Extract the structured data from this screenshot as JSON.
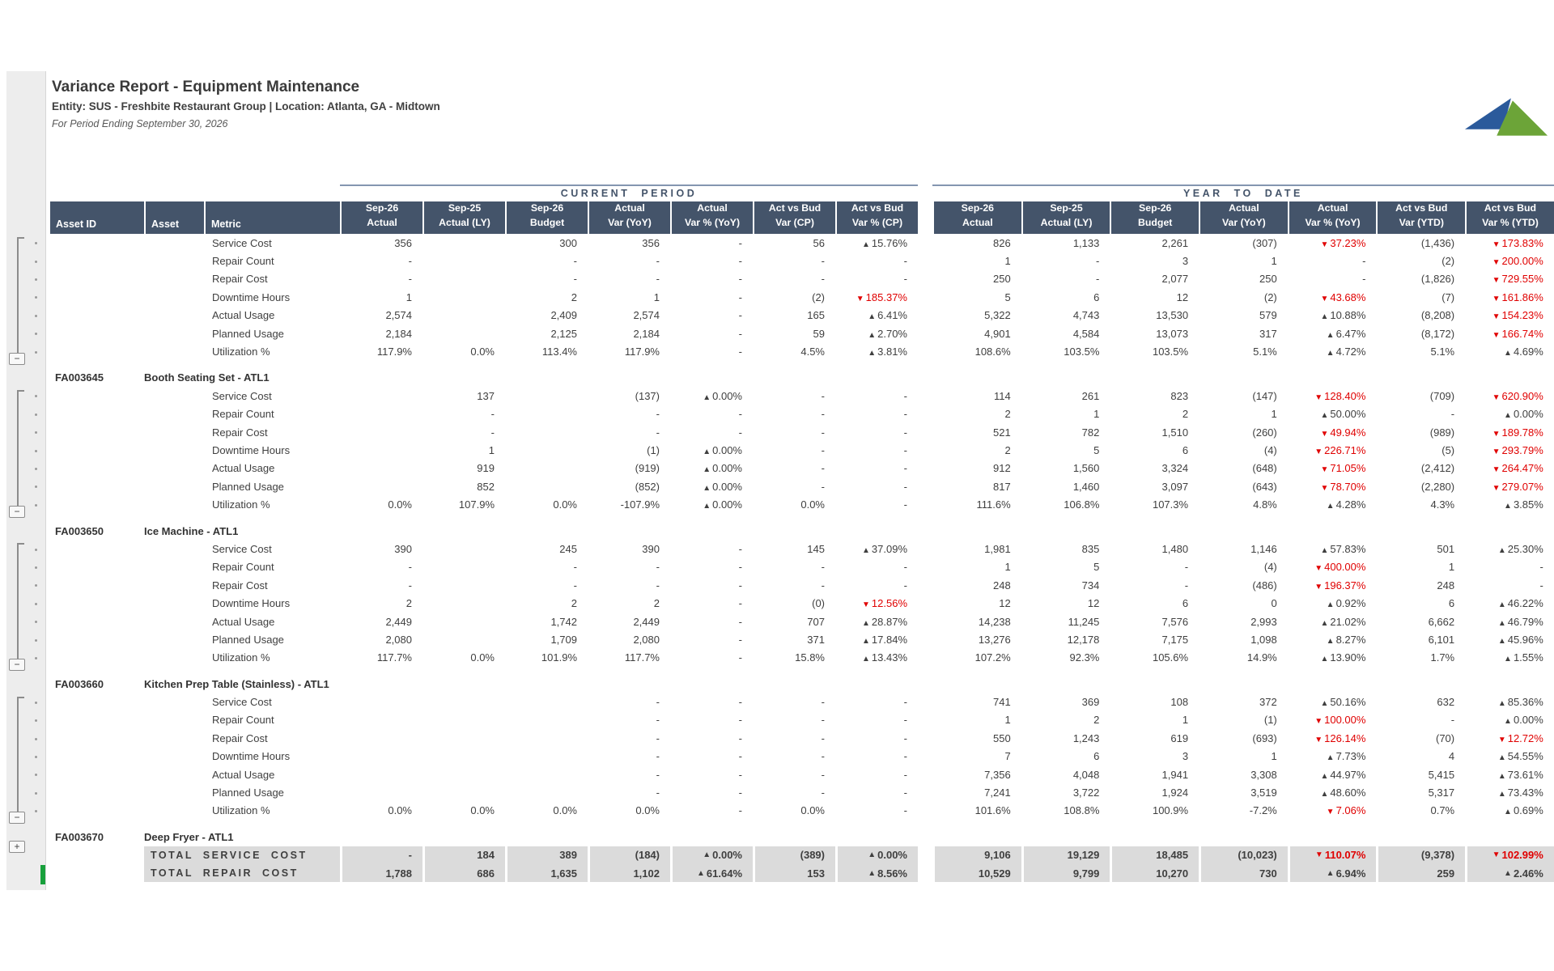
{
  "report": {
    "title": "Variance Report - Equipment Maintenance",
    "entity_line": "Entity: SUS - Freshbite Restaurant Group  |  Location: Atlanta, GA - Midtown",
    "period_line": "For Period Ending September 30, 2026"
  },
  "sections": {
    "current_period": "CURRENT PERIOD",
    "year_to_date": "YEAR TO DATE"
  },
  "columns": {
    "labels": [
      "Asset ID",
      "Asset",
      "Metric"
    ],
    "value_headers": [
      [
        "Sep-26",
        "Actual"
      ],
      [
        "Sep-25",
        "Actual (LY)"
      ],
      [
        "Sep-26",
        "Budget"
      ],
      [
        "Actual",
        "Var (YoY)"
      ],
      [
        "Actual",
        "Var % (YoY)"
      ],
      [
        "Act vs Bud",
        "Var (CP)"
      ],
      [
        "Act vs Bud",
        "Var % (CP)"
      ],
      [
        "Sep-26",
        "Actual"
      ],
      [
        "Sep-25",
        "Actual (LY)"
      ],
      [
        "Sep-26",
        "Budget"
      ],
      [
        "Actual",
        "Var (YoY)"
      ],
      [
        "Actual",
        "Var % (YoY)"
      ],
      [
        "Act vs Bud",
        "Var (YTD)"
      ],
      [
        "Act vs Bud",
        "Var % (YTD)"
      ]
    ]
  },
  "groups": [
    {
      "asset_id": "",
      "asset_name": "",
      "rows": [
        {
          "metric": "Service Cost",
          "cells": [
            "356",
            "",
            "300",
            "356",
            "-",
            "56",
            "▲15.76%",
            "826",
            "1,133",
            "2,261",
            "(307)",
            "▼37.23%",
            "(1,436)",
            "▼173.83%"
          ]
        },
        {
          "metric": "Repair Count",
          "cells": [
            "-",
            "",
            "-",
            "-",
            "-",
            "-",
            "-",
            "1",
            "-",
            "3",
            "1",
            "-",
            "(2)",
            "▼200.00%"
          ]
        },
        {
          "metric": "Repair Cost",
          "cells": [
            "-",
            "",
            "-",
            "-",
            "-",
            "-",
            "-",
            "250",
            "-",
            "2,077",
            "250",
            "-",
            "(1,826)",
            "▼729.55%"
          ]
        },
        {
          "metric": "Downtime Hours",
          "cells": [
            "1",
            "",
            "2",
            "1",
            "-",
            "(2)",
            "▼185.37%",
            "5",
            "6",
            "12",
            "(2)",
            "▼43.68%",
            "(7)",
            "▼161.86%"
          ]
        },
        {
          "metric": "Actual Usage",
          "cells": [
            "2,574",
            "",
            "2,409",
            "2,574",
            "-",
            "165",
            "▲6.41%",
            "5,322",
            "4,743",
            "13,530",
            "579",
            "▲10.88%",
            "(8,208)",
            "▼154.23%"
          ]
        },
        {
          "metric": "Planned Usage",
          "cells": [
            "2,184",
            "",
            "2,125",
            "2,184",
            "-",
            "59",
            "▲2.70%",
            "4,901",
            "4,584",
            "13,073",
            "317",
            "▲6.47%",
            "(8,172)",
            "▼166.74%"
          ]
        },
        {
          "metric": "Utilization %",
          "cells": [
            "117.9%",
            "0.0%",
            "113.4%",
            "117.9%",
            "-",
            "4.5%",
            "▲3.81%",
            "108.6%",
            "103.5%",
            "103.5%",
            "5.1%",
            "▲4.72%",
            "5.1%",
            "▲4.69%"
          ]
        }
      ]
    },
    {
      "asset_id": "FA003645",
      "asset_name": "Booth Seating Set - ATL1",
      "rows": [
        {
          "metric": "Service Cost",
          "cells": [
            "",
            "137",
            "",
            "(137)",
            "▲0.00%",
            "-",
            "-",
            "114",
            "261",
            "823",
            "(147)",
            "▼128.40%",
            "(709)",
            "▼620.90%"
          ]
        },
        {
          "metric": "Repair Count",
          "cells": [
            "",
            "-",
            "",
            "-",
            "-",
            "-",
            "-",
            "2",
            "1",
            "2",
            "1",
            "▲50.00%",
            "-",
            "▲0.00%"
          ]
        },
        {
          "metric": "Repair Cost",
          "cells": [
            "",
            "-",
            "",
            "-",
            "-",
            "-",
            "-",
            "521",
            "782",
            "1,510",
            "(260)",
            "▼49.94%",
            "(989)",
            "▼189.78%"
          ]
        },
        {
          "metric": "Downtime Hours",
          "cells": [
            "",
            "1",
            "",
            "(1)",
            "▲0.00%",
            "-",
            "-",
            "2",
            "5",
            "6",
            "(4)",
            "▼226.71%",
            "(5)",
            "▼293.79%"
          ]
        },
        {
          "metric": "Actual Usage",
          "cells": [
            "",
            "919",
            "",
            "(919)",
            "▲0.00%",
            "-",
            "-",
            "912",
            "1,560",
            "3,324",
            "(648)",
            "▼71.05%",
            "(2,412)",
            "▼264.47%"
          ]
        },
        {
          "metric": "Planned Usage",
          "cells": [
            "",
            "852",
            "",
            "(852)",
            "▲0.00%",
            "-",
            "-",
            "817",
            "1,460",
            "3,097",
            "(643)",
            "▼78.70%",
            "(2,280)",
            "▼279.07%"
          ]
        },
        {
          "metric": "Utilization %",
          "cells": [
            "0.0%",
            "107.9%",
            "0.0%",
            "-107.9%",
            "▲0.00%",
            "0.0%",
            "-",
            "111.6%",
            "106.8%",
            "107.3%",
            "4.8%",
            "▲4.28%",
            "4.3%",
            "▲3.85%"
          ]
        }
      ]
    },
    {
      "asset_id": "FA003650",
      "asset_name": "Ice Machine - ATL1",
      "rows": [
        {
          "metric": "Service Cost",
          "cells": [
            "390",
            "",
            "245",
            "390",
            "-",
            "145",
            "▲37.09%",
            "1,981",
            "835",
            "1,480",
            "1,146",
            "▲57.83%",
            "501",
            "▲25.30%"
          ]
        },
        {
          "metric": "Repair Count",
          "cells": [
            "-",
            "",
            "-",
            "-",
            "-",
            "-",
            "-",
            "1",
            "5",
            "-",
            "(4)",
            "▼400.00%",
            "1",
            "-"
          ]
        },
        {
          "metric": "Repair Cost",
          "cells": [
            "-",
            "",
            "-",
            "-",
            "-",
            "-",
            "-",
            "248",
            "734",
            "-",
            "(486)",
            "▼196.37%",
            "248",
            "-"
          ]
        },
        {
          "metric": "Downtime Hours",
          "cells": [
            "2",
            "",
            "2",
            "2",
            "-",
            "(0)",
            "▼12.56%",
            "12",
            "12",
            "6",
            "0",
            "▲0.92%",
            "6",
            "▲46.22%"
          ]
        },
        {
          "metric": "Actual Usage",
          "cells": [
            "2,449",
            "",
            "1,742",
            "2,449",
            "-",
            "707",
            "▲28.87%",
            "14,238",
            "11,245",
            "7,576",
            "2,993",
            "▲21.02%",
            "6,662",
            "▲46.79%"
          ]
        },
        {
          "metric": "Planned Usage",
          "cells": [
            "2,080",
            "",
            "1,709",
            "2,080",
            "-",
            "371",
            "▲17.84%",
            "13,276",
            "12,178",
            "7,175",
            "1,098",
            "▲8.27%",
            "6,101",
            "▲45.96%"
          ]
        },
        {
          "metric": "Utilization %",
          "cells": [
            "117.7%",
            "0.0%",
            "101.9%",
            "117.7%",
            "-",
            "15.8%",
            "▲13.43%",
            "107.2%",
            "92.3%",
            "105.6%",
            "14.9%",
            "▲13.90%",
            "1.7%",
            "▲1.55%"
          ]
        }
      ]
    },
    {
      "asset_id": "FA003660",
      "asset_name": "Kitchen Prep Table (Stainless) - ATL1",
      "rows": [
        {
          "metric": "Service Cost",
          "cells": [
            "",
            "",
            "",
            "-",
            "-",
            "-",
            "-",
            "741",
            "369",
            "108",
            "372",
            "▲50.16%",
            "632",
            "▲85.36%"
          ]
        },
        {
          "metric": "Repair Count",
          "cells": [
            "",
            "",
            "",
            "-",
            "-",
            "-",
            "-",
            "1",
            "2",
            "1",
            "(1)",
            "▼100.00%",
            "-",
            "▲0.00%"
          ]
        },
        {
          "metric": "Repair Cost",
          "cells": [
            "",
            "",
            "",
            "-",
            "-",
            "-",
            "-",
            "550",
            "1,243",
            "619",
            "(693)",
            "▼126.14%",
            "(70)",
            "▼12.72%"
          ]
        },
        {
          "metric": "Downtime Hours",
          "cells": [
            "",
            "",
            "",
            "-",
            "-",
            "-",
            "-",
            "7",
            "6",
            "3",
            "1",
            "▲7.73%",
            "4",
            "▲54.55%"
          ]
        },
        {
          "metric": "Actual Usage",
          "cells": [
            "",
            "",
            "",
            "-",
            "-",
            "-",
            "-",
            "7,356",
            "4,048",
            "1,941",
            "3,308",
            "▲44.97%",
            "5,415",
            "▲73.61%"
          ]
        },
        {
          "metric": "Planned Usage",
          "cells": [
            "",
            "",
            "",
            "-",
            "-",
            "-",
            "-",
            "7,241",
            "3,722",
            "1,924",
            "3,519",
            "▲48.60%",
            "5,317",
            "▲73.43%"
          ]
        },
        {
          "metric": "Utilization %",
          "cells": [
            "0.0%",
            "0.0%",
            "0.0%",
            "0.0%",
            "-",
            "0.0%",
            "-",
            "101.6%",
            "108.8%",
            "100.9%",
            "-7.2%",
            "▼7.06%",
            "0.7%",
            "▲0.69%"
          ]
        }
      ]
    },
    {
      "asset_id": "FA003670",
      "asset_name": "Deep Fryer - ATL1",
      "rows": []
    }
  ],
  "totals": [
    {
      "label": "TOTAL SERVICE COST",
      "cells": [
        "-",
        "184",
        "389",
        "(184)",
        "▲0.00%",
        "(389)",
        "▲0.00%",
        "9,106",
        "19,129",
        "18,485",
        "(10,023)",
        "▼110.07%",
        "(9,378)",
        "▼102.99%"
      ]
    },
    {
      "label": "TOTAL REPAIR COST",
      "cells": [
        "1,788",
        "686",
        "1,635",
        "1,102",
        "▲61.64%",
        "153",
        "▲8.56%",
        "10,529",
        "9,799",
        "10,270",
        "730",
        "▲6.94%",
        "259",
        "▲2.46%"
      ]
    }
  ],
  "gutter": {
    "collapse_symbol": "−",
    "expand_symbol": "+"
  },
  "icons": {
    "positive_marker": "▲",
    "negative_marker": "▼"
  },
  "colors": {
    "header_bg": "#44546A",
    "header_text": "#FFFFFF",
    "section_text": "#44546A",
    "rule_line": "#8496B0",
    "body_text": "#3F3F3F",
    "negative_red": "#E00000",
    "total_bg": "#DBDBDB",
    "gutter_bg": "#EDEDED",
    "outline_gray": "#8C8C8C",
    "selection_green": "#18A03C",
    "logo_blue": "#2B5A9B",
    "logo_green": "#6CA438"
  }
}
